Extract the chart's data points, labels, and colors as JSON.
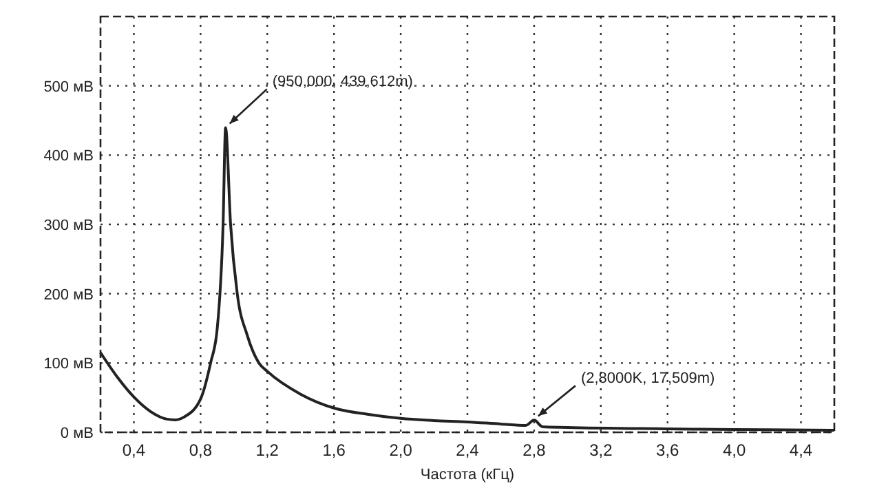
{
  "chart_data": {
    "type": "line",
    "xlabel": "Частота (кГц)",
    "xlim": [
      0.2,
      4.6
    ],
    "ylim": [
      0,
      600
    ],
    "xticks": [
      {
        "value": 0.4,
        "label": "0,4"
      },
      {
        "value": 0.8,
        "label": "0,8"
      },
      {
        "value": 1.2,
        "label": "1,2"
      },
      {
        "value": 1.6,
        "label": "1,6"
      },
      {
        "value": 2.0,
        "label": "2,0"
      },
      {
        "value": 2.4,
        "label": "2,4"
      },
      {
        "value": 2.8,
        "label": "2,8"
      },
      {
        "value": 3.2,
        "label": "3,2"
      },
      {
        "value": 3.6,
        "label": "3,6"
      },
      {
        "value": 4.0,
        "label": "4,0"
      },
      {
        "value": 4.4,
        "label": "4,4"
      }
    ],
    "yticks": [
      {
        "value": 0,
        "label": "0 мВ"
      },
      {
        "value": 100,
        "label": "100 мВ"
      },
      {
        "value": 200,
        "label": "200 мВ"
      },
      {
        "value": 300,
        "label": "300 мВ"
      },
      {
        "value": 400,
        "label": "400 мВ"
      },
      {
        "value": 500,
        "label": "500 мВ"
      }
    ],
    "grid": true,
    "line_style": "solid",
    "series": [
      {
        "color": "#222222",
        "x": [
          0.2,
          0.3,
          0.4,
          0.5,
          0.6,
          0.65,
          0.7,
          0.8,
          0.86,
          0.9,
          0.935,
          0.95,
          0.98,
          1.02,
          1.08,
          1.15,
          1.2,
          1.4,
          1.6,
          1.8,
          2.0,
          2.2,
          2.4,
          2.6,
          2.75,
          2.8,
          2.85,
          3.0,
          3.6,
          4.0,
          4.6
        ],
        "values": [
          115,
          80,
          51,
          30,
          19,
          18,
          22,
          48,
          100,
          150,
          300,
          439.612,
          300,
          200,
          140,
          100,
          88,
          55,
          35,
          26,
          20,
          17,
          15,
          12,
          10,
          17.509,
          8,
          7,
          5,
          4,
          3
        ]
      }
    ],
    "annotations": [
      {
        "text": "(950,000, 439,612m)",
        "x": 0.95,
        "y": 439.612
      },
      {
        "text": "(2,8000K, 17,509m)",
        "x": 2.8,
        "y": 17.509
      }
    ]
  }
}
